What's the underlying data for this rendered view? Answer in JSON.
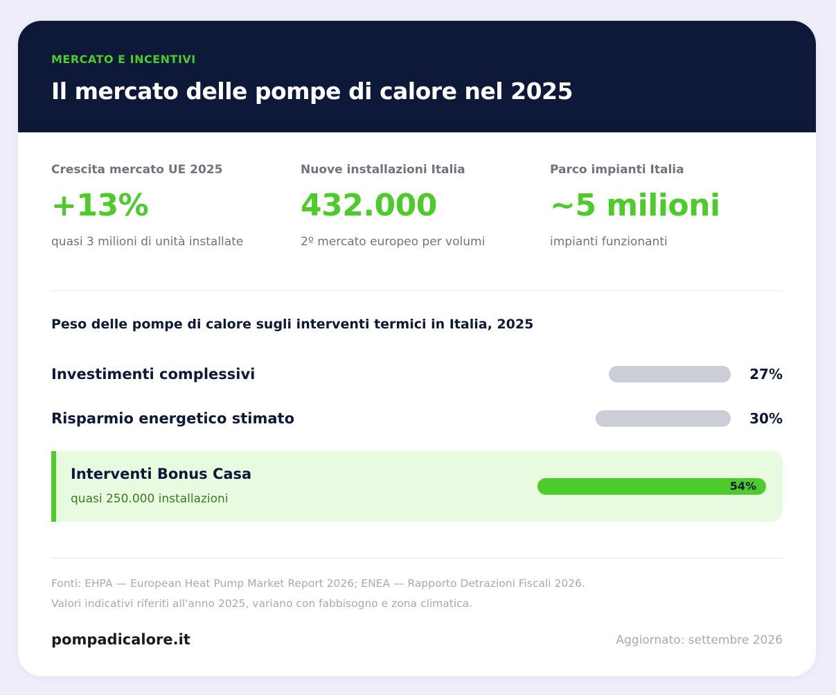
{
  "header": {
    "eyebrow": "MERCATO E INCENTIVI",
    "title": "Il mercato delle pompe di calore nel 2025"
  },
  "stats": [
    {
      "label": "Crescita mercato UE 2025",
      "value": "+13%",
      "sub": "quasi 3 milioni di unità installate"
    },
    {
      "label": "Nuove installazioni Italia",
      "value": "432.000",
      "sub": "2º mercato europeo per volumi"
    },
    {
      "label": "Parco impianti Italia",
      "value": "~5 milioni",
      "sub": "impianti funzionanti"
    }
  ],
  "section": {
    "title": "Peso delle pompe di calore sugli interventi termici in Italia, 2025",
    "rows": [
      {
        "label": "Investimenti complessivi",
        "value": "27%",
        "fraction": 0.27
      },
      {
        "label": "Risparmio energetico stimato",
        "value": "30%",
        "fraction": 0.3
      }
    ],
    "highlight": {
      "label": "Interventi Bonus Casa",
      "sub": "quasi 250.000 installazioni",
      "value": "54%",
      "fraction": 0.54
    }
  },
  "footer": {
    "sources": [
      "Fonti: EHPA — European Heat Pump Market Report 2026; ENEA — Rapporto Detrazioni Fiscali 2026.",
      "Valori indicativi riferiti all'anno 2025, variano con fabbisogno e zona climatica."
    ],
    "brand": "pompadicalore.it",
    "updated": "Aggiornato: settembre 2026"
  },
  "colors": {
    "accent": "#4ccb2a",
    "header_bg": "#0e1838",
    "bar_track": "#cbcdd7",
    "highlight_bg": "#e8fae0"
  }
}
